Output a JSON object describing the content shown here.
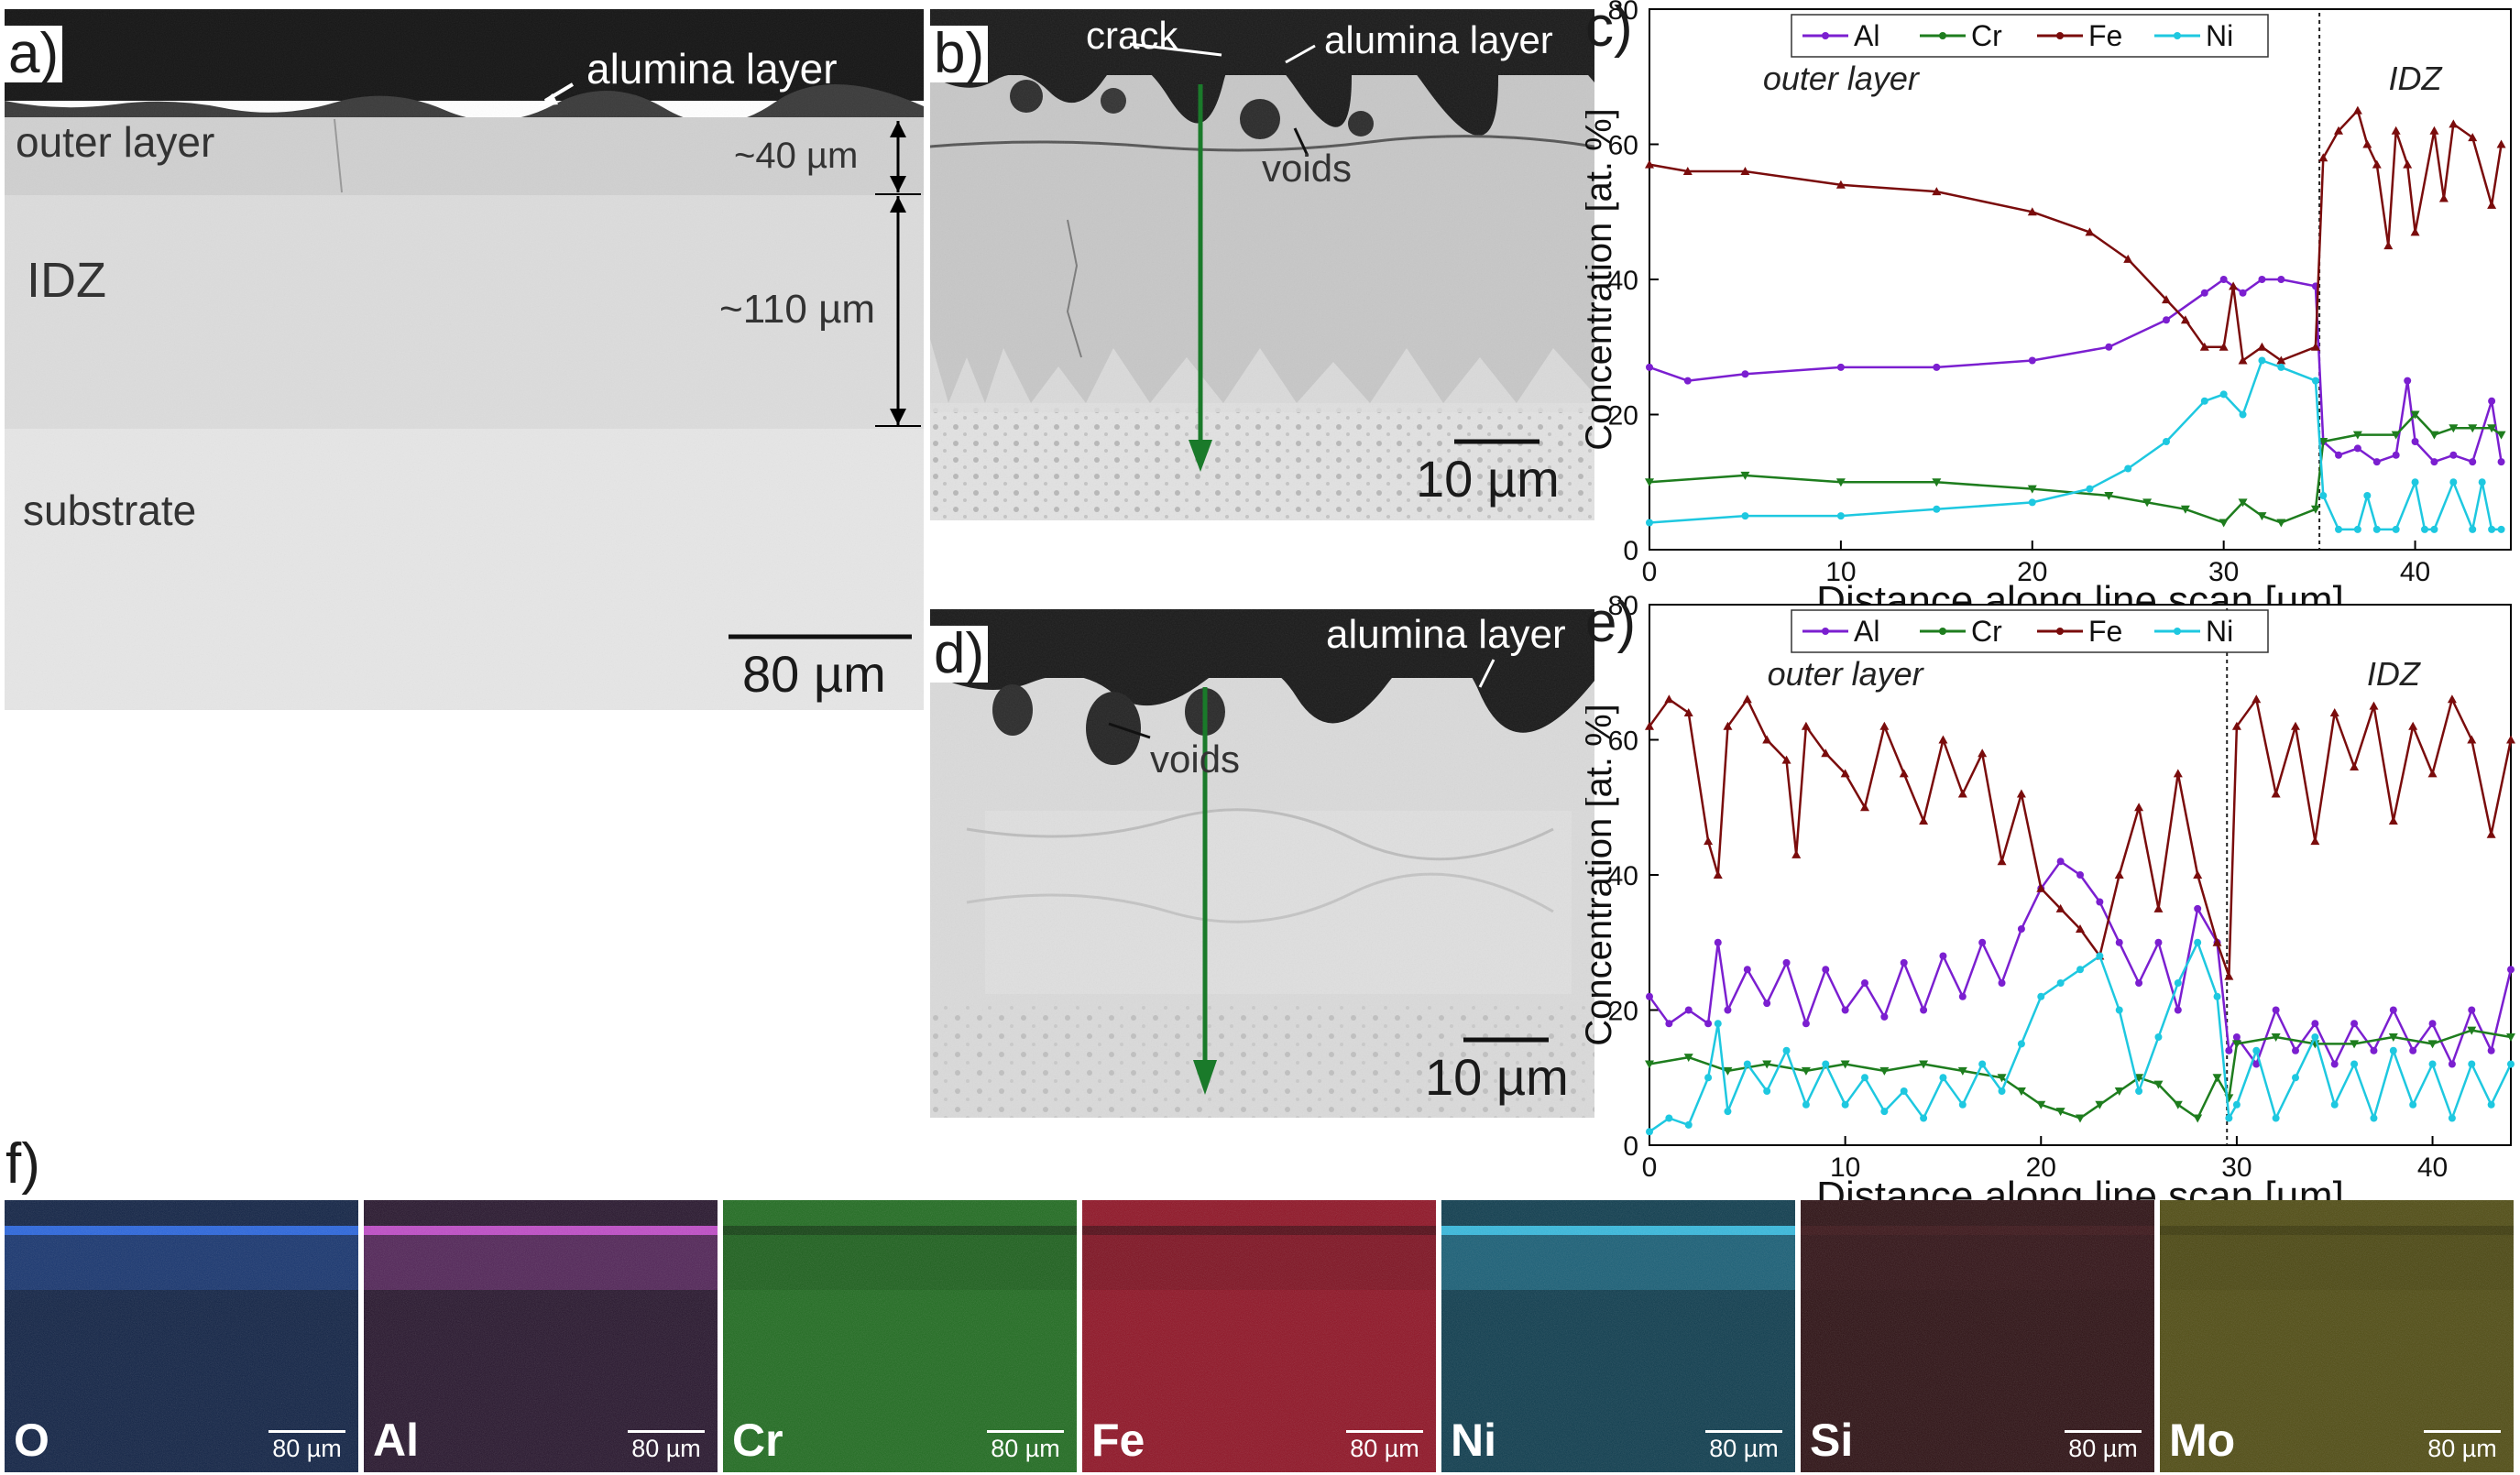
{
  "panel_a": {
    "label": "a)",
    "annotations": {
      "alumina": "alumina layer",
      "outer": "outer layer",
      "idz": "IDZ",
      "substrate": "substrate",
      "thick1": "~40 µm",
      "thick2": "~110 µm"
    },
    "scale_bar": "80 µm"
  },
  "panel_b": {
    "label": "b)",
    "annotations": {
      "crack": "crack",
      "alumina": "alumina layer",
      "voids": "voids"
    },
    "scale_bar": "10 µm"
  },
  "panel_d": {
    "label": "d)",
    "annotations": {
      "alumina": "alumina layer",
      "voids": "voids"
    },
    "scale_bar": "10 µm"
  },
  "panel_f": {
    "label": "f)"
  },
  "colors": {
    "Al": "#7b1fd0",
    "Cr": "#1e7d1e",
    "Fe": "#7a0c0c",
    "Ni": "#1ec8e0",
    "arrow": "#1a7a2a"
  },
  "chart_data": [
    {
      "panel": "c)",
      "type": "line",
      "xlabel": "Distance along line scan [µm]",
      "ylabel": "Concentration [at. %]",
      "xlim": [
        0,
        45
      ],
      "ylim": [
        0,
        80
      ],
      "xticks": [
        0,
        10,
        20,
        30,
        40
      ],
      "yticks": [
        0,
        20,
        40,
        60,
        80
      ],
      "regions": [
        {
          "label": "outer layer",
          "x": 10
        },
        {
          "label": "IDZ",
          "x": 40
        }
      ],
      "boundary_x": 35,
      "legend": [
        "Al",
        "Cr",
        "Fe",
        "Ni"
      ],
      "legend_position": "top",
      "series": [
        {
          "name": "Al",
          "x": [
            0,
            2,
            5,
            10,
            15,
            20,
            24,
            27,
            29,
            30,
            31,
            32,
            33,
            34.8,
            35.2,
            36,
            37,
            38,
            39,
            39.6,
            40,
            41,
            42,
            43,
            44,
            44.5
          ],
          "y": [
            27,
            25,
            26,
            27,
            27,
            28,
            30,
            34,
            38,
            40,
            38,
            40,
            40,
            39,
            16,
            14,
            15,
            13,
            14,
            25,
            16,
            13,
            14,
            13,
            22,
            13
          ]
        },
        {
          "name": "Cr",
          "x": [
            0,
            5,
            10,
            15,
            20,
            24,
            26,
            28,
            30,
            31,
            32,
            33,
            34.8,
            35.2,
            37,
            39,
            40,
            41,
            42,
            43,
            44,
            44.5
          ],
          "y": [
            10,
            11,
            10,
            10,
            9,
            8,
            7,
            6,
            4,
            7,
            5,
            4,
            6,
            16,
            17,
            17,
            20,
            17,
            18,
            18,
            18,
            17
          ]
        },
        {
          "name": "Fe",
          "x": [
            0,
            2,
            5,
            10,
            15,
            20,
            23,
            25,
            27,
            28,
            29,
            30,
            30.5,
            31,
            32,
            33,
            34.8,
            35.2,
            36,
            37,
            37.5,
            38,
            38.6,
            39,
            39.6,
            40,
            41,
            41.5,
            42,
            43,
            44,
            44.5
          ],
          "y": [
            57,
            56,
            56,
            54,
            53,
            50,
            47,
            43,
            37,
            34,
            30,
            30,
            39,
            28,
            30,
            28,
            30,
            58,
            62,
            65,
            60,
            57,
            45,
            62,
            57,
            47,
            62,
            52,
            63,
            61,
            51,
            60
          ]
        },
        {
          "name": "Ni",
          "x": [
            0,
            5,
            10,
            15,
            20,
            23,
            25,
            27,
            29,
            30,
            31,
            32,
            33,
            34.8,
            35.2,
            36,
            37,
            37.5,
            38,
            39,
            40,
            40.5,
            41,
            42,
            43,
            43.5,
            44,
            44.5
          ],
          "y": [
            4,
            5,
            5,
            6,
            7,
            9,
            12,
            16,
            22,
            23,
            20,
            28,
            27,
            25,
            8,
            3,
            3,
            8,
            3,
            3,
            10,
            3,
            3,
            10,
            3,
            10,
            3,
            3
          ]
        }
      ]
    },
    {
      "panel": "e)",
      "type": "line",
      "xlabel": "Distance along line scan [µm]",
      "ylabel": "Concentration [at. %]",
      "xlim": [
        0,
        44
      ],
      "ylim": [
        0,
        80
      ],
      "xticks": [
        0,
        10,
        20,
        30,
        40
      ],
      "yticks": [
        0,
        20,
        40,
        60,
        80
      ],
      "regions": [
        {
          "label": "outer layer",
          "x": 10
        },
        {
          "label": "IDZ",
          "x": 38
        }
      ],
      "boundary_x": 29.5,
      "legend": [
        "Al",
        "Cr",
        "Fe",
        "Ni"
      ],
      "legend_position": "top",
      "series": [
        {
          "name": "Al",
          "x": [
            0,
            1,
            2,
            3,
            3.5,
            4,
            5,
            6,
            7,
            8,
            9,
            10,
            11,
            12,
            13,
            14,
            15,
            16,
            17,
            18,
            19,
            20,
            21,
            22,
            23,
            24,
            25,
            26,
            27,
            28,
            29,
            29.6,
            30,
            31,
            32,
            33,
            34,
            35,
            36,
            37,
            38,
            39,
            40,
            41,
            42,
            43,
            44
          ],
          "y": [
            22,
            18,
            20,
            18,
            30,
            20,
            26,
            21,
            27,
            18,
            26,
            20,
            24,
            19,
            27,
            20,
            28,
            22,
            30,
            24,
            32,
            38,
            42,
            40,
            36,
            30,
            24,
            30,
            20,
            35,
            30,
            14,
            16,
            12,
            20,
            14,
            18,
            12,
            18,
            14,
            20,
            14,
            18,
            12,
            20,
            14,
            26
          ]
        },
        {
          "name": "Cr",
          "x": [
            0,
            2,
            4,
            6,
            8,
            10,
            12,
            14,
            16,
            18,
            19,
            20,
            21,
            22,
            23,
            24,
            25,
            26,
            27,
            28,
            29,
            29.6,
            30,
            32,
            34,
            36,
            38,
            40,
            42,
            44
          ],
          "y": [
            12,
            13,
            11,
            12,
            11,
            12,
            11,
            12,
            11,
            10,
            8,
            6,
            5,
            4,
            6,
            8,
            10,
            9,
            6,
            4,
            10,
            7,
            15,
            16,
            15,
            15,
            16,
            15,
            17,
            16
          ]
        },
        {
          "name": "Fe",
          "x": [
            0,
            1,
            2,
            3,
            3.5,
            4,
            5,
            6,
            7,
            7.5,
            8,
            9,
            10,
            11,
            12,
            13,
            14,
            15,
            16,
            17,
            18,
            19,
            20,
            21,
            22,
            23,
            24,
            25,
            26,
            27,
            28,
            29,
            29.6,
            30,
            31,
            32,
            33,
            34,
            35,
            36,
            37,
            38,
            39,
            40,
            41,
            42,
            43,
            44
          ],
          "y": [
            62,
            66,
            64,
            45,
            40,
            62,
            66,
            60,
            57,
            43,
            62,
            58,
            55,
            50,
            62,
            55,
            48,
            60,
            52,
            58,
            42,
            52,
            38,
            35,
            32,
            28,
            40,
            50,
            35,
            55,
            40,
            30,
            25,
            62,
            66,
            52,
            62,
            45,
            64,
            56,
            65,
            48,
            62,
            55,
            66,
            60,
            46,
            60
          ]
        },
        {
          "name": "Ni",
          "x": [
            0,
            1,
            2,
            3,
            3.5,
            4,
            5,
            6,
            7,
            8,
            9,
            10,
            11,
            12,
            13,
            14,
            15,
            16,
            17,
            18,
            19,
            20,
            21,
            22,
            23,
            24,
            25,
            26,
            27,
            28,
            29,
            29.6,
            30,
            31,
            32,
            33,
            34,
            35,
            36,
            37,
            38,
            39,
            40,
            41,
            42,
            43,
            44
          ],
          "y": [
            2,
            4,
            3,
            10,
            18,
            5,
            12,
            8,
            14,
            6,
            12,
            6,
            10,
            5,
            8,
            4,
            10,
            6,
            12,
            8,
            15,
            22,
            24,
            26,
            28,
            20,
            8,
            16,
            24,
            30,
            22,
            4,
            6,
            14,
            4,
            10,
            16,
            6,
            12,
            4,
            14,
            6,
            12,
            4,
            12,
            6,
            12
          ]
        }
      ]
    }
  ],
  "maps": [
    {
      "element": "O",
      "scale_bar": "80 µm",
      "bg": "#0d1f42",
      "band": "#2a6cf0"
    },
    {
      "element": "Al",
      "scale_bar": "80 µm",
      "bg": "#24122a",
      "band": "#d050d8"
    },
    {
      "element": "Cr",
      "scale_bar": "80 µm",
      "bg": "#1d6a1d",
      "band": "#103c10"
    },
    {
      "element": "Fe",
      "scale_bar": "80 µm",
      "bg": "#8e1022",
      "band": "#4a0812"
    },
    {
      "element": "Ni",
      "scale_bar": "80 µm",
      "bg": "#0b3a4c",
      "band": "#38c8ee"
    },
    {
      "element": "Si",
      "scale_bar": "80 µm",
      "bg": "#2a0d10",
      "band": "#3a1216"
    },
    {
      "element": "Mo",
      "scale_bar": "80 µm",
      "bg": "#4e4a10",
      "band": "#3a3608"
    }
  ]
}
